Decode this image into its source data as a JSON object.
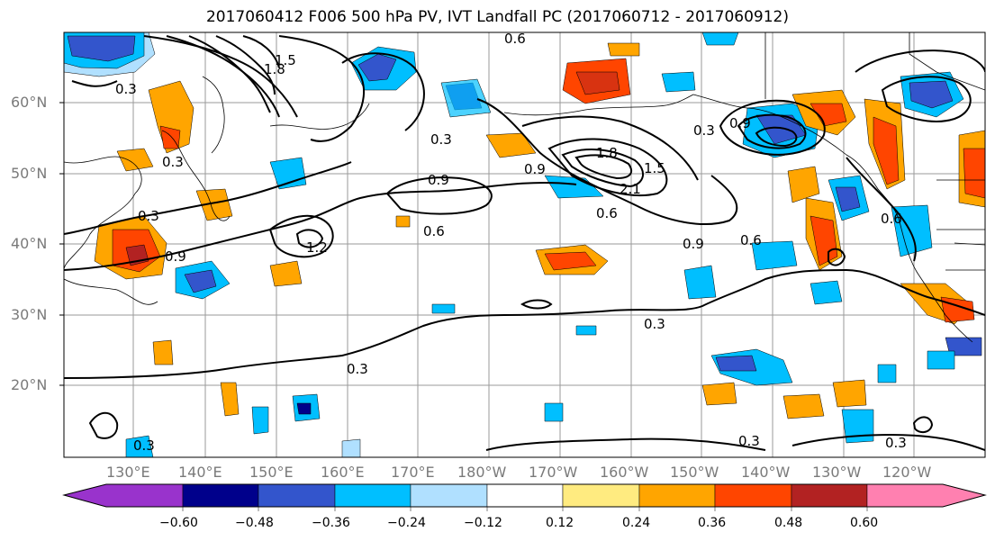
{
  "title": "2017060412 F006 500 hPa PV, IVT Landfall PC (2017060712 - 2017060912)",
  "map": {
    "lon_labels": [
      "130°E",
      "140°E",
      "150°E",
      "160°E",
      "170°E",
      "180°W",
      "170°W",
      "160°W",
      "150°W",
      "140°W",
      "130°W",
      "120°W"
    ],
    "lat_labels": [
      "60°N",
      "50°N",
      "40°N",
      "30°N",
      "20°N"
    ],
    "contour_labels": [
      "0.3",
      "0.9",
      "1.2",
      "1.5",
      "1.8",
      "2.1",
      "0.6"
    ]
  },
  "colorbar": {
    "tick_labels": [
      "−0.60",
      "−0.48",
      "−0.36",
      "−0.24",
      "−0.12",
      "0.12",
      "0.24",
      "0.36",
      "0.48",
      "0.60"
    ],
    "colors": [
      "#9933cc",
      "#00008b",
      "#3355cc",
      "#00bfff",
      "#b0e0ff",
      "#ffffff",
      "#ffeb80",
      "#ffa500",
      "#ff4500",
      "#b22222",
      "#ff80b0"
    ]
  },
  "fill_colors": {
    "pos_low": "#ffeb80",
    "pos_mid": "#ffa500",
    "pos_high": "#ff4500",
    "pos_top": "#b22222",
    "neg_low": "#b0e0ff",
    "neg_mid": "#00bfff",
    "neg_high": "#3355cc",
    "neg_top": "#00008b"
  }
}
